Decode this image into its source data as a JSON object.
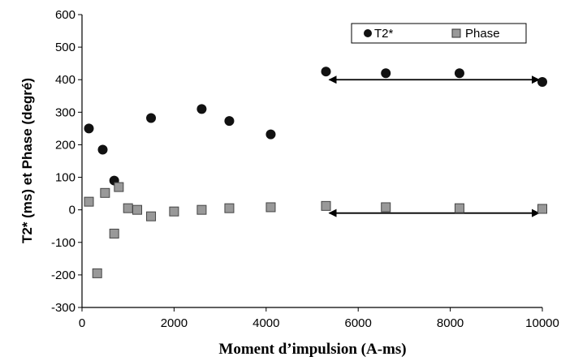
{
  "chart_data": {
    "type": "scatter",
    "title": "",
    "xlabel": "Moment d’impulsion (A-ms)",
    "ylabel": "T2* (ms) et Phase (degré)",
    "xlim": [
      0,
      10000
    ],
    "ylim": [
      -300,
      600
    ],
    "x_ticks": [
      0,
      2000,
      4000,
      6000,
      8000,
      10000
    ],
    "x_tick_labels": [
      "0",
      "2000",
      "4000",
      "6000",
      "8000",
      "10000"
    ],
    "y_ticks": [
      -300,
      -200,
      -100,
      0,
      100,
      200,
      300,
      400,
      500,
      600
    ],
    "y_tick_labels": [
      "-300",
      "-200",
      "-100",
      "0",
      "100",
      "200",
      "300",
      "400",
      "500",
      "600"
    ],
    "grid": false,
    "legend_position": "top-right",
    "series": [
      {
        "name": "T2*",
        "marker": "circle",
        "color": "#111111",
        "points": [
          {
            "x": 150,
            "y": 250
          },
          {
            "x": 450,
            "y": 185
          },
          {
            "x": 700,
            "y": 90
          },
          {
            "x": 1500,
            "y": 282
          },
          {
            "x": 2600,
            "y": 310
          },
          {
            "x": 3200,
            "y": 273
          },
          {
            "x": 4100,
            "y": 232
          },
          {
            "x": 5300,
            "y": 425
          },
          {
            "x": 6600,
            "y": 420
          },
          {
            "x": 8200,
            "y": 420
          },
          {
            "x": 10000,
            "y": 393
          }
        ]
      },
      {
        "name": "Phase",
        "marker": "square",
        "color": "#999999",
        "points": [
          {
            "x": 150,
            "y": 25
          },
          {
            "x": 330,
            "y": -195
          },
          {
            "x": 500,
            "y": 52
          },
          {
            "x": 700,
            "y": -73
          },
          {
            "x": 800,
            "y": 70
          },
          {
            "x": 1000,
            "y": 5
          },
          {
            "x": 1200,
            "y": 0
          },
          {
            "x": 1500,
            "y": -20
          },
          {
            "x": 2000,
            "y": -5
          },
          {
            "x": 2600,
            "y": 0
          },
          {
            "x": 3200,
            "y": 5
          },
          {
            "x": 4100,
            "y": 8
          },
          {
            "x": 5300,
            "y": 12
          },
          {
            "x": 6600,
            "y": 8
          },
          {
            "x": 8200,
            "y": 5
          },
          {
            "x": 10000,
            "y": 3
          }
        ]
      }
    ],
    "annotations": [
      {
        "type": "double-arrow",
        "x_start": 5300,
        "x_end": 10000,
        "y": 400
      },
      {
        "type": "double-arrow",
        "x_start": 5300,
        "x_end": 10000,
        "y": -10
      }
    ]
  }
}
